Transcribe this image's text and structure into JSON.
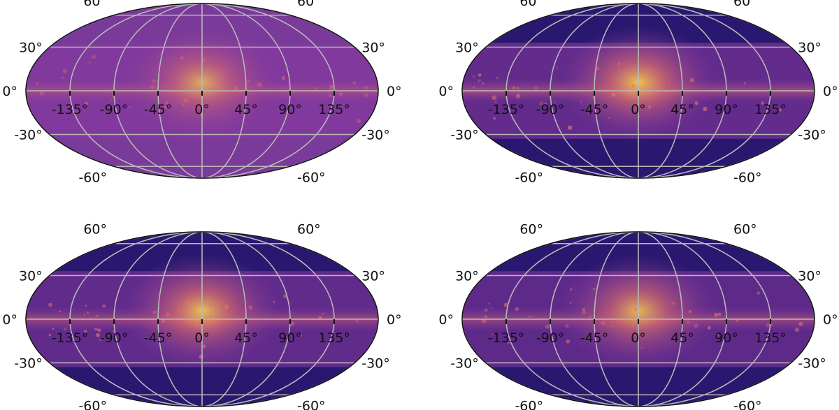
{
  "panels": [
    {
      "id": "top-left",
      "brightness": 0.45
    },
    {
      "id": "top-right",
      "brightness": 0.8
    },
    {
      "id": "bottom-left",
      "brightness": 0.75
    },
    {
      "id": "bottom-right",
      "brightness": 0.65
    }
  ],
  "longitude_labels": [
    "-135°",
    "-90°",
    "-45°",
    "0°",
    "45°",
    "90°",
    "135°"
  ],
  "latitude_labels_left": [
    "60°",
    "30°",
    "0°",
    "-30°",
    "-60°"
  ],
  "latitude_labels_right": [
    "60°",
    "30°",
    "0°",
    "-30°",
    "-60°"
  ],
  "colors": {
    "grid": "#b8b8b8",
    "outline": "#111111",
    "dark": "#2a1870",
    "mid": "#8a3aa0",
    "hot": "#e0706a",
    "core": "#f9d24a"
  }
}
